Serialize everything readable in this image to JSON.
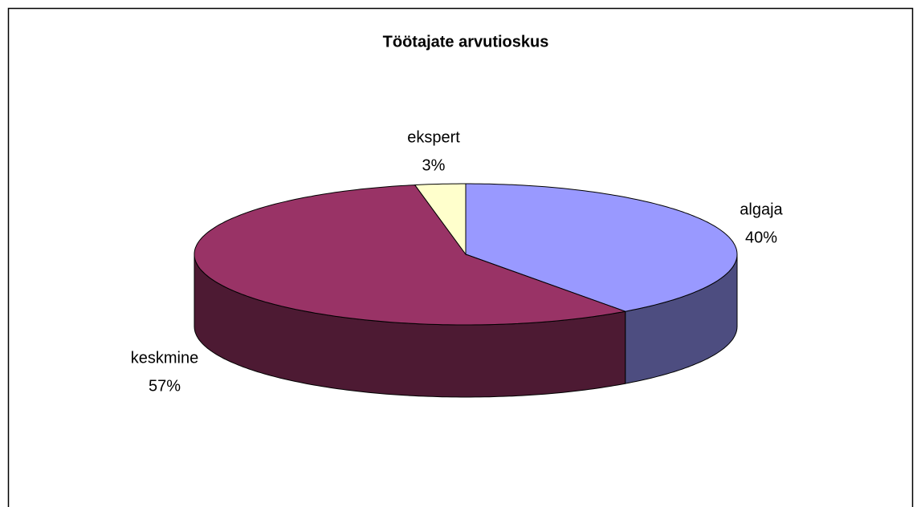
{
  "chart_data": {
    "type": "pie",
    "title": "Töötajate arvutioskus",
    "categories": [
      "algaja",
      "keskmine",
      "ekspert"
    ],
    "values": [
      40,
      57,
      3
    ],
    "value_labels": [
      "40%",
      "57%",
      "3%"
    ],
    "colors": [
      "#9999ff",
      "#993366",
      "#ffffcc"
    ]
  }
}
